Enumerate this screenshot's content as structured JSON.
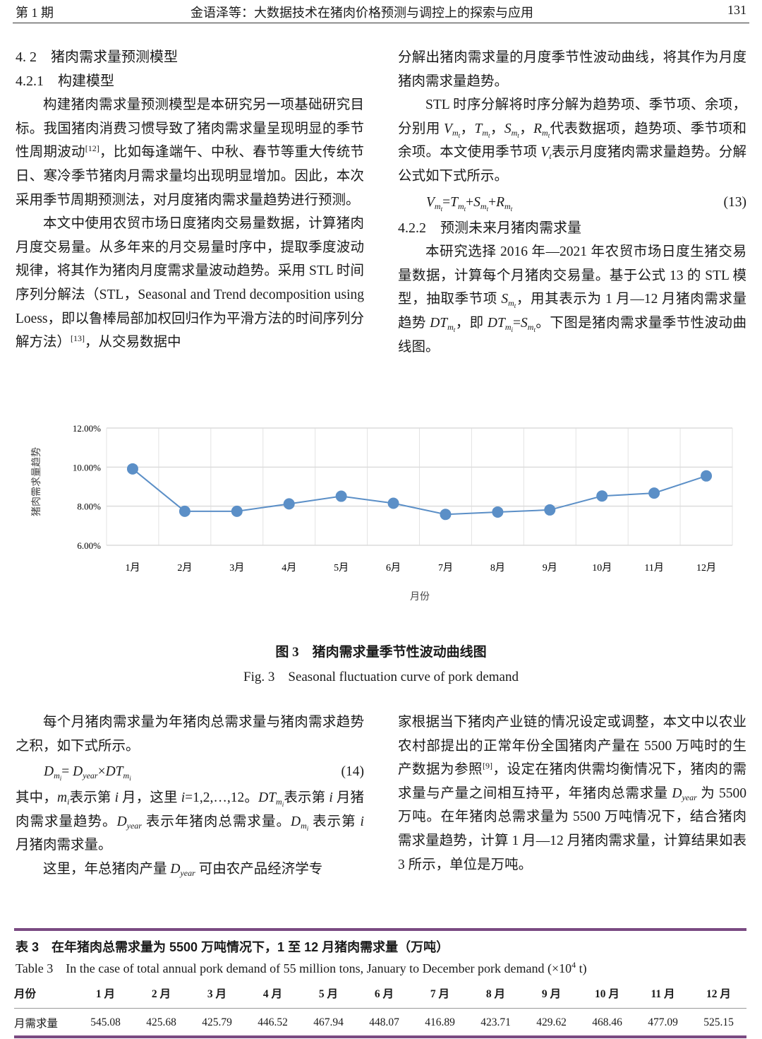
{
  "header": {
    "left": "第 1 期",
    "center": "金语泽等：大数据技术在猪肉价格预测与调控上的探索与应用",
    "right": "131"
  },
  "left_col": [
    {
      "type": "h",
      "seg": [
        {
          "t": "4. 2　猪肉需求量预测模型"
        }
      ]
    },
    {
      "type": "h",
      "seg": [
        {
          "t": "4.2.1　构建模型"
        }
      ]
    },
    {
      "type": "p",
      "seg": [
        {
          "t": "构建猪肉需求量预测模型是本研究另一项基础研究目标。我国猪肉消费习惯导致了猪肉需求量呈现明显的季节性周期波动"
        },
        {
          "t": "[12]",
          "s": "sup"
        },
        {
          "t": "，比如每逢端午、中秋、春节等重大传统节日、寒冷季节猪肉月需求量均出现明显增加。因此，本次采用季节周期预测法，对月度猪肉需求量趋势进行预测。"
        }
      ]
    },
    {
      "type": "p",
      "seg": [
        {
          "t": "本文中使用农贸市场日度猪肉交易量数据，计算猪肉月度交易量。从多年来的月交易量时序中，提取季度波动规律，将其作为猪肉月度需求量波动趋势。采用 STL 时间序列分解法（STL，Seasonal and Trend decomposition using Loess，即以鲁棒局部加权回归作为平滑方法的时间序列分解方法）"
        },
        {
          "t": "[13]",
          "s": "sup"
        },
        {
          "t": "，从交易数据中"
        }
      ]
    }
  ],
  "right_col": [
    {
      "type": "n",
      "seg": [
        {
          "t": "分解出猪肉需求量的月度季节性波动曲线，将其作为月度猪肉需求量趋势。"
        }
      ]
    },
    {
      "type": "p",
      "seg": [
        {
          "t": "STL 时序分解将时序分解为趋势项、季节项、余项，分别用 "
        },
        {
          "t": "V",
          "s": "i"
        },
        {
          "t": "m",
          "s": "sub",
          "n": "t"
        },
        {
          "t": "，"
        },
        {
          "t": "T",
          "s": "i"
        },
        {
          "t": "m",
          "s": "sub",
          "n": "t"
        },
        {
          "t": "，"
        },
        {
          "t": "S",
          "s": "i"
        },
        {
          "t": "m",
          "s": "sub",
          "n": "t"
        },
        {
          "t": "，"
        },
        {
          "t": "R",
          "s": "i"
        },
        {
          "t": "m",
          "s": "sub",
          "n": "t"
        },
        {
          "t": "代表数据项，趋势项、季节项和余项。本文使用季节项 "
        },
        {
          "t": "V",
          "s": "i"
        },
        {
          "t": "t",
          "s": "sub"
        },
        {
          "t": "表示月度猪肉需求量趋势。分解公式如下式所示。"
        }
      ]
    },
    {
      "type": "eq",
      "num": "(13)",
      "seg": [
        {
          "t": "V",
          "s": "i"
        },
        {
          "t": "m",
          "s": "sub",
          "n": "t"
        },
        {
          "t": "="
        },
        {
          "t": "T",
          "s": "i"
        },
        {
          "t": "m",
          "s": "sub",
          "n": "t"
        },
        {
          "t": "+"
        },
        {
          "t": "S",
          "s": "i"
        },
        {
          "t": "m",
          "s": "sub",
          "n": "t"
        },
        {
          "t": "+"
        },
        {
          "t": "R",
          "s": "i"
        },
        {
          "t": "m",
          "s": "sub",
          "n": "t"
        }
      ]
    },
    {
      "type": "h",
      "seg": [
        {
          "t": "4.2.2　预测未来月猪肉需求量"
        }
      ]
    },
    {
      "type": "p",
      "seg": [
        {
          "t": "本研究选择 2016 年—2021 年农贸市场日度生猪交易量数据，计算每个月猪肉交易量。基于公式 13 的 STL 模型，抽取季节项 "
        },
        {
          "t": "S",
          "s": "i"
        },
        {
          "t": "m",
          "s": "sub",
          "n": "t"
        },
        {
          "t": "，用其表示为 1 月—12 月猪肉需求量趋势 "
        },
        {
          "t": "DT",
          "s": "i"
        },
        {
          "t": "m",
          "s": "sub",
          "n": "t"
        },
        {
          "t": "，即 "
        },
        {
          "t": "DT",
          "s": "i"
        },
        {
          "t": "m",
          "s": "sub",
          "n": "i"
        },
        {
          "t": "="
        },
        {
          "t": "S",
          "s": "i"
        },
        {
          "t": "m",
          "s": "sub",
          "n": "t"
        },
        {
          "t": "。下图是猪肉需求量季节性波动曲线图。"
        }
      ]
    }
  ],
  "chart_data": {
    "type": "line",
    "categories": [
      "1月",
      "2月",
      "3月",
      "4月",
      "5月",
      "6月",
      "7月",
      "8月",
      "9月",
      "10月",
      "11月",
      "12月"
    ],
    "values": [
      9.91,
      7.74,
      7.74,
      8.12,
      8.51,
      8.15,
      7.58,
      7.7,
      7.81,
      8.52,
      8.67,
      9.55
    ],
    "xlabel": "月份",
    "ylabel": "猪肉需求量趋势",
    "ylim": [
      6,
      12
    ],
    "yticks": [
      "6.00%",
      "8.00%",
      "10.00%",
      "12.00%"
    ],
    "ytick_values": [
      6,
      8,
      10,
      12
    ],
    "grid": true,
    "color": "#5b8fc7"
  },
  "figure": {
    "caption_cn": "图 3　猪肉需求量季节性波动曲线图",
    "caption_en": "Fig. 3　Seasonal fluctuation curve of pork demand"
  },
  "bottom_left": [
    {
      "type": "p",
      "seg": [
        {
          "t": "每个月猪肉需求量为年猪肉总需求量与猪肉需求趋势之积，如下式所示。"
        }
      ]
    },
    {
      "type": "eq",
      "num": "(14)",
      "seg": [
        {
          "t": "D",
          "s": "i"
        },
        {
          "t": "m",
          "s": "sub",
          "n": "i"
        },
        {
          "t": "= "
        },
        {
          "t": "D",
          "s": "i"
        },
        {
          "t": "year",
          "s": "sub"
        },
        {
          "t": "×"
        },
        {
          "t": "DT",
          "s": "i"
        },
        {
          "t": "m",
          "s": "sub",
          "n": "i"
        }
      ]
    },
    {
      "type": "n",
      "seg": [
        {
          "t": "其中，"
        },
        {
          "t": "m",
          "s": "i"
        },
        {
          "t": "i",
          "s": "sub"
        },
        {
          "t": "表示第 "
        },
        {
          "t": "i",
          "s": "i"
        },
        {
          "t": " 月，这里 "
        },
        {
          "t": "i",
          "s": "i"
        },
        {
          "t": "=1,2,…,12。"
        },
        {
          "t": "DT",
          "s": "i"
        },
        {
          "t": "m",
          "s": "sub",
          "n": "i"
        },
        {
          "t": "表示第 "
        },
        {
          "t": "i",
          "s": "i"
        },
        {
          "t": " 月猪肉需求量趋势。"
        },
        {
          "t": "D",
          "s": "i"
        },
        {
          "t": "year",
          "s": "sub"
        },
        {
          "t": " 表示年猪肉总需求量。"
        },
        {
          "t": "D",
          "s": "i"
        },
        {
          "t": "m",
          "s": "sub",
          "n": "i"
        },
        {
          "t": " 表示第 "
        },
        {
          "t": "i",
          "s": "i"
        },
        {
          "t": " 月猪肉需求量。"
        }
      ]
    },
    {
      "type": "p",
      "seg": [
        {
          "t": "这里，年总猪肉产量 "
        },
        {
          "t": "D",
          "s": "i"
        },
        {
          "t": "year",
          "s": "sub"
        },
        {
          "t": " 可由农产品经济学专"
        }
      ]
    }
  ],
  "bottom_right": [
    {
      "type": "n",
      "seg": [
        {
          "t": "家根据当下猪肉产业链的情况设定或调整，本文中以农业农村部提出的正常年份全国猪肉产量在 5500 万吨时的生产数据为参照"
        },
        {
          "t": "[9]",
          "s": "sup"
        },
        {
          "t": "，设定在猪肉供需均衡情况下，猪肉的需求量与产量之间相互持平，年猪肉总需求量 "
        },
        {
          "t": "D",
          "s": "i"
        },
        {
          "t": "year",
          "s": "sub"
        },
        {
          "t": " 为 5500 万吨。在年猪肉总需求量为 5500 万吨情况下，结合猪肉需求量趋势，计算 1 月—12 月猪肉需求量，计算结果如表 3 所示，单位是万吨。"
        }
      ]
    }
  ],
  "table": {
    "title_cn": "表 3　在年猪肉总需求量为 5500 万吨情况下，1 至 12 月猪肉需求量（万吨）",
    "title_en": "Table 3　In the case of total annual pork demand of 55 million tons, January to December pork demand (×10",
    "title_en_sup": "4",
    "title_en_end": " t)",
    "header": [
      "月份",
      "1 月",
      "2 月",
      "3 月",
      "4 月",
      "5 月",
      "6 月",
      "7 月",
      "8 月",
      "9 月",
      "10 月",
      "11 月",
      "12 月"
    ],
    "row": [
      "月需求量",
      "545.08",
      "425.68",
      "425.79",
      "446.52",
      "467.94",
      "448.07",
      "416.89",
      "423.71",
      "429.62",
      "468.46",
      "477.09",
      "525.15"
    ]
  }
}
